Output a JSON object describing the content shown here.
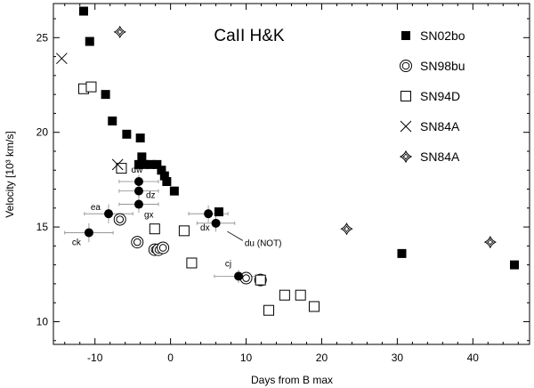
{
  "chart_data": {
    "type": "scatter",
    "title": "CaII H&K",
    "xlabel": "Days from B max",
    "ylabel": "Velocity [10³ km/s]",
    "xlim": [
      -15.5,
      47.5
    ],
    "ylim": [
      8.8,
      26.8
    ],
    "xticks": [
      -10,
      0,
      10,
      20,
      30,
      40
    ],
    "yticks": [
      10,
      15,
      20,
      25
    ],
    "grid": false,
    "legend_position": "top-right",
    "legend": [
      {
        "label": "SN02bo",
        "marker": "filled-square"
      },
      {
        "label": "SN98bu",
        "marker": "double-circle"
      },
      {
        "label": "SN94D",
        "marker": "open-square"
      },
      {
        "label": "SN84A",
        "marker": "x"
      },
      {
        "label": "SN84A",
        "marker": "star"
      }
    ],
    "series": [
      {
        "name": "SN02bo",
        "marker": "filled-square",
        "points": [
          [
            -11.5,
            26.4
          ],
          [
            -10.7,
            24.8
          ],
          [
            -8.6,
            22.0
          ],
          [
            -7.7,
            20.6
          ],
          [
            -5.8,
            19.9
          ],
          [
            -4.0,
            19.7
          ],
          [
            -3.8,
            18.7
          ],
          [
            -4.2,
            18.3
          ],
          [
            -3.5,
            18.3
          ],
          [
            -2.6,
            18.3
          ],
          [
            -1.8,
            18.3
          ],
          [
            -1.2,
            18.0
          ],
          [
            -0.8,
            17.7
          ],
          [
            -0.5,
            17.4
          ],
          [
            0.5,
            16.9
          ],
          [
            6.4,
            15.8
          ],
          [
            30.6,
            13.6
          ],
          [
            45.5,
            13.0
          ]
        ]
      },
      {
        "name": "SN98bu",
        "marker": "double-circle",
        "points": [
          [
            -6.7,
            15.4
          ],
          [
            -4.4,
            14.2
          ],
          [
            -2.1,
            13.8
          ],
          [
            -1.6,
            13.8
          ],
          [
            -1.0,
            13.9
          ],
          [
            10.0,
            12.3
          ],
          [
            11.9,
            12.2
          ]
        ]
      },
      {
        "name": "SN94D",
        "marker": "open-square",
        "points": [
          [
            -11.5,
            22.3
          ],
          [
            -10.5,
            22.4
          ],
          [
            -6.5,
            18.1
          ],
          [
            -2.1,
            14.9
          ],
          [
            1.8,
            14.8
          ],
          [
            2.8,
            13.1
          ],
          [
            11.9,
            12.2
          ],
          [
            13.0,
            10.6
          ],
          [
            15.1,
            11.4
          ],
          [
            17.2,
            11.4
          ],
          [
            19.0,
            10.8
          ]
        ]
      },
      {
        "name": "SN84A",
        "marker": "x",
        "points": [
          [
            -14.4,
            23.9
          ],
          [
            -7.0,
            18.3
          ]
        ]
      },
      {
        "name": "SN84A",
        "marker": "star",
        "points": [
          [
            -6.7,
            25.3
          ],
          [
            23.3,
            14.9
          ],
          [
            42.3,
            14.2
          ]
        ]
      },
      {
        "marker": "filled-circle",
        "points": [
          {
            "x": -8.2,
            "y": 15.7,
            "xerr": 3.2,
            "yerr": 0.5,
            "label": "ea"
          },
          {
            "x": -10.8,
            "y": 14.7,
            "xerr": 3.2,
            "yerr": 0.5,
            "label": "ck"
          },
          {
            "x": -4.2,
            "y": 17.4,
            "xerr": 2.6,
            "yerr": 0.35,
            "label": "dw"
          },
          {
            "x": -4.2,
            "y": 16.9,
            "xerr": 2.6,
            "yerr": 0.35,
            "label": "dz"
          },
          {
            "x": -4.2,
            "y": 16.2,
            "xerr": 2.6,
            "yerr": 0.45,
            "label": "gx"
          },
          {
            "x": 5.0,
            "y": 15.7,
            "xerr": 2.6,
            "yerr": 0.45,
            "label": ""
          },
          {
            "x": 6.0,
            "y": 15.2,
            "xerr": 2.5,
            "yerr": 0.45,
            "label": "dx"
          },
          {
            "x": 9.0,
            "y": 12.4,
            "xerr": 3.2,
            "yerr": 0.35,
            "label": "cj"
          }
        ]
      }
    ],
    "annotations": [
      {
        "text": "du (NOT)",
        "x": 9.8,
        "y": 14.0,
        "arrow_to": [
          6.8,
          15.0
        ]
      }
    ]
  }
}
